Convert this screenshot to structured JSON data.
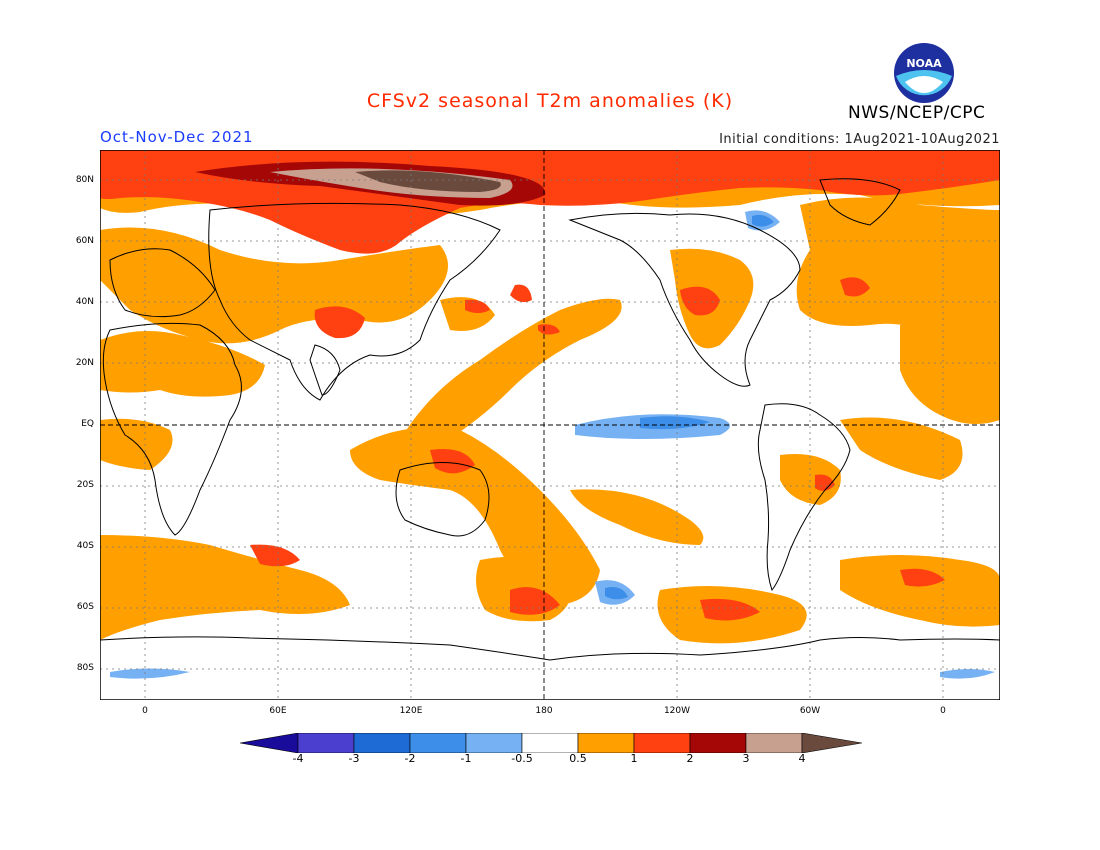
{
  "title": "CFSv2 seasonal T2m anomalies (K)",
  "season": "Oct-Nov-Dec 2021",
  "initial_conditions": "Initial conditions: 1Aug2021-10Aug2021",
  "agency": "NWS/NCEP/CPC",
  "logo_text": "NOAA",
  "lat_labels": [
    "80N",
    "60N",
    "40N",
    "20N",
    "EQ",
    "20S",
    "40S",
    "60S",
    "80S"
  ],
  "lon_labels": [
    "0",
    "60E",
    "120E",
    "180",
    "120W",
    "60W",
    "0"
  ],
  "colorbar": {
    "labels": [
      "-4",
      "-3",
      "-2",
      "-1",
      "-0.5",
      "0.5",
      "1",
      "2",
      "3",
      "4"
    ],
    "colors": [
      "#1a0c9a",
      "#4b3fd0",
      "#1f6bd6",
      "#3d8ee8",
      "#76b2f3",
      "#ffffff",
      "#ff9f00",
      "#ff4010",
      "#a50606",
      "#c8a090",
      "#6b4a3e"
    ]
  },
  "colors": {
    "title": "#ff2a00",
    "season": "#1a3cff",
    "anomaly_0.5_1": "#ff9f00",
    "anomaly_1_2": "#ff4010",
    "anomaly_2_3": "#a50606",
    "anomaly_3_4": "#c8a090",
    "anomaly_gt4": "#6b4a3e",
    "anomaly_-1_-0.5": "#76b2f3",
    "anomaly_-2_-1": "#3d8ee8"
  }
}
